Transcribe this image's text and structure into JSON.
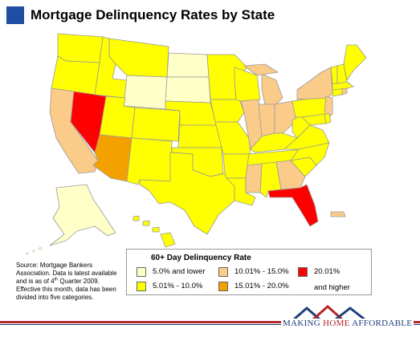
{
  "title": "Mortgage Delinquency Rates by State",
  "colors": {
    "accent": "#1f4ea3",
    "c1": "#ffffc8",
    "c2": "#ffff00",
    "c3": "#fbcb8a",
    "c4": "#f4a100",
    "c5": "#ff0000",
    "border": "#999999"
  },
  "legend": {
    "title": "60+ Day Delinquency Rate",
    "items": [
      {
        "label": "5.0% and lower",
        "color": "#ffffc8"
      },
      {
        "label": "5.01% - 10.0%",
        "color": "#ffff00"
      },
      {
        "label": "10.01% - 15.0%",
        "color": "#fbcb8a"
      },
      {
        "label": "15.01% - 20.0%",
        "color": "#f4a100"
      },
      {
        "label": "20.01%",
        "color": "#ff0000"
      }
    ],
    "extra": "and higher"
  },
  "source": {
    "line1": "Source: Mortgage Bankers Association. Data is latest available and is as of 4",
    "sup": "th",
    "line2": " Quarter 2009. Effective this month, data has been divided into five categories."
  },
  "brand": {
    "part1": "MAKING ",
    "part2": "HOME",
    "part3": " AFFORDABLE",
    "tm": "TM"
  },
  "states": [
    {
      "name": "Washington",
      "category": 2
    },
    {
      "name": "Oregon",
      "category": 2
    },
    {
      "name": "California",
      "category": 3
    },
    {
      "name": "Nevada",
      "category": 5
    },
    {
      "name": "Idaho",
      "category": 2
    },
    {
      "name": "Montana",
      "category": 2
    },
    {
      "name": "Wyoming",
      "category": 1
    },
    {
      "name": "Utah",
      "category": 2
    },
    {
      "name": "Arizona",
      "category": 4
    },
    {
      "name": "Colorado",
      "category": 2
    },
    {
      "name": "New Mexico",
      "category": 2
    },
    {
      "name": "North Dakota",
      "category": 1
    },
    {
      "name": "South Dakota",
      "category": 1
    },
    {
      "name": "Nebraska",
      "category": 2
    },
    {
      "name": "Kansas",
      "category": 2
    },
    {
      "name": "Oklahoma",
      "category": 2
    },
    {
      "name": "Texas",
      "category": 2
    },
    {
      "name": "Minnesota",
      "category": 2
    },
    {
      "name": "Iowa",
      "category": 2
    },
    {
      "name": "Missouri",
      "category": 2
    },
    {
      "name": "Arkansas",
      "category": 2
    },
    {
      "name": "Louisiana",
      "category": 2
    },
    {
      "name": "Wisconsin",
      "category": 2
    },
    {
      "name": "Illinois",
      "category": 3
    },
    {
      "name": "Michigan",
      "category": 3
    },
    {
      "name": "Indiana",
      "category": 3
    },
    {
      "name": "Ohio",
      "category": 3
    },
    {
      "name": "Kentucky",
      "category": 2
    },
    {
      "name": "Tennessee",
      "category": 2
    },
    {
      "name": "Mississippi",
      "category": 3
    },
    {
      "name": "Alabama",
      "category": 2
    },
    {
      "name": "Georgia",
      "category": 3
    },
    {
      "name": "Florida",
      "category": 5
    },
    {
      "name": "South Carolina",
      "category": 2
    },
    {
      "name": "North Carolina",
      "category": 2
    },
    {
      "name": "Virginia",
      "category": 2
    },
    {
      "name": "West Virginia",
      "category": 2
    },
    {
      "name": "Pennsylvania",
      "category": 2
    },
    {
      "name": "New York",
      "category": 3
    },
    {
      "name": "New Jersey",
      "category": 3
    },
    {
      "name": "Maryland",
      "category": 2
    },
    {
      "name": "Delaware",
      "category": 2
    },
    {
      "name": "Connecticut",
      "category": 2
    },
    {
      "name": "Rhode Island",
      "category": 3
    },
    {
      "name": "Massachusetts",
      "category": 2
    },
    {
      "name": "Vermont",
      "category": 2
    },
    {
      "name": "New Hampshire",
      "category": 2
    },
    {
      "name": "Maine",
      "category": 2
    },
    {
      "name": "Alaska",
      "category": 1
    },
    {
      "name": "Hawaii",
      "category": 2
    },
    {
      "name": "Puerto Rico",
      "category": 3
    }
  ]
}
